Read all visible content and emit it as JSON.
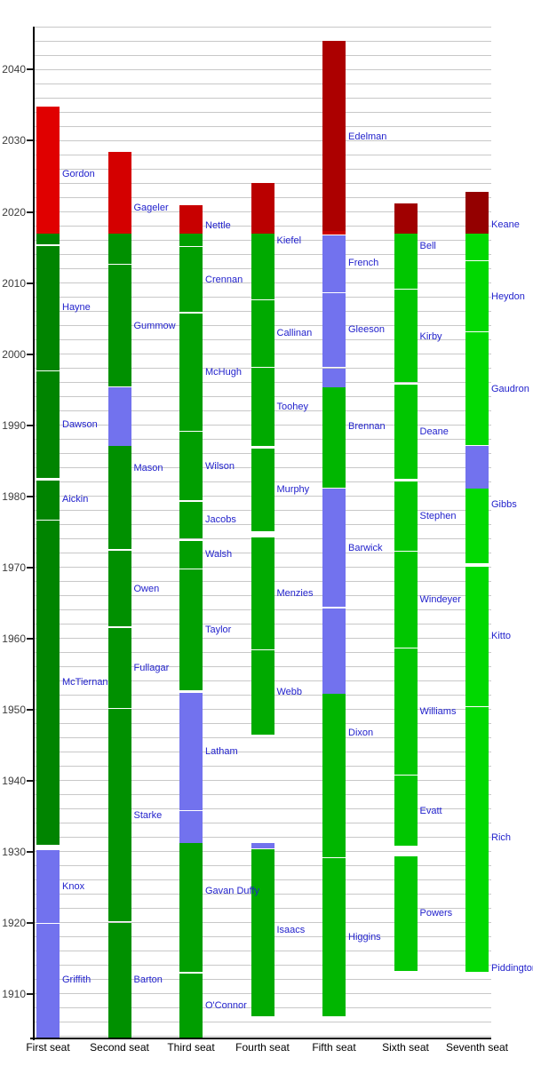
{
  "chart_data": {
    "type": "bar",
    "title": "",
    "orientation": "vertical-timeline",
    "grid": true,
    "y_axis": {
      "range": [
        1903.7,
        2046.06
      ],
      "tick_labels": [
        "1910",
        "1920",
        "1930",
        "1940",
        "1950",
        "1960",
        "1970",
        "1980",
        "1990",
        "2000",
        "2010",
        "2020",
        "2030",
        "2040"
      ],
      "tick_years": [
        1910,
        1920,
        1930,
        1940,
        1950,
        1960,
        1970,
        1980,
        1990,
        2000,
        2010,
        2020,
        2030,
        2040
      ],
      "grid_step": 2,
      "grid_range": [
        1904,
        2046
      ]
    },
    "x_categories": [
      "First seat",
      "Second seat",
      "Third seat",
      "Fourth seat",
      "Fifth seat",
      "Sixth seat",
      "Seventh seat"
    ],
    "palette": {
      "chief_justice_blue": "#7272EE",
      "served_green_by_seat": [
        "#008400",
        "#009000",
        "#009E00",
        "#00AA00",
        "#00B600",
        "#00C600",
        "#00D800"
      ],
      "projected_red_by_seat": [
        "#E00000",
        "#D40000",
        "#C80000",
        "#BA0000",
        "#AC0000",
        "#A00000",
        "#940000"
      ],
      "grid_color": "#C8C8C8",
      "axis_color": "#000000",
      "name_label_color": "#2222CC",
      "tick_label_color": "#3D3D3D",
      "seat_label_color": "#000000"
    },
    "seats": [
      {
        "label": "First seat",
        "segments": [
          {
            "name": "Griffith",
            "color": "cj",
            "start": 1903.75,
            "end": 1919.85,
            "label_year": 1911.9
          },
          {
            "name": "Knox",
            "color": "cj",
            "start": 1919.95,
            "end": 1930.25,
            "label_year": 1925.1
          },
          {
            "name": "McTiernan",
            "color": "green",
            "start": 1930.9,
            "end": 1976.55,
            "label_year": 1953.8
          },
          {
            "name": "Aickin",
            "color": "green",
            "start": 1976.75,
            "end": 1982.25,
            "label_year": 1979.6
          },
          {
            "name": "Dawson",
            "color": "green",
            "start": 1982.55,
            "end": 1997.6,
            "label_year": 1990.1
          },
          {
            "name": "Hayne",
            "color": "green",
            "start": 1997.75,
            "end": 2015.25,
            "label_year": 2006.6
          },
          {
            "name": "Gordon",
            "color": "green",
            "start": 2015.45,
            "end": 2016.9
          },
          {
            "name": "Gordon",
            "color": "red",
            "start": 2016.9,
            "end": 2034.85,
            "label_year": 2025.3
          }
        ]
      },
      {
        "label": "Second seat",
        "segments": [
          {
            "name": "Barton",
            "color": "green",
            "start": 1903.75,
            "end": 1920.0,
            "label_year": 1911.9
          },
          {
            "name": "Starke",
            "color": "green",
            "start": 1920.15,
            "end": 1950.05,
            "label_year": 1935.1
          },
          {
            "name": "Fullagar",
            "color": "green",
            "start": 1950.2,
            "end": 1961.45,
            "label_year": 1955.8
          },
          {
            "name": "Owen",
            "color": "green",
            "start": 1961.65,
            "end": 1972.35,
            "label_year": 1967.0
          },
          {
            "name": "Mason",
            "color": "green",
            "start": 1972.6,
            "end": 1987.05,
            "label_year": 1983.9
          },
          {
            "name": "Mason",
            "color": "cj",
            "start": 1987.05,
            "end": 1995.3
          },
          {
            "name": "Gummow",
            "color": "green",
            "start": 1995.45,
            "end": 2012.6,
            "label_year": 2004.0
          },
          {
            "name": "Gageler",
            "color": "green",
            "start": 2012.75,
            "end": 2016.9
          },
          {
            "name": "Gageler",
            "color": "red",
            "start": 2016.9,
            "end": 2028.4,
            "label_year": 2020.6
          }
        ]
      },
      {
        "label": "Third seat",
        "segments": [
          {
            "name": "O'Connor",
            "color": "green",
            "start": 1903.75,
            "end": 1912.85,
            "label_year": 1908.3
          },
          {
            "name": "Gavan Duffy",
            "color": "green",
            "start": 1913.05,
            "end": 1931.25,
            "label_year": 1924.4
          },
          {
            "name": "Gavan Duffy",
            "color": "cj",
            "start": 1931.25,
            "end": 1935.65
          },
          {
            "name": "Latham",
            "color": "cj",
            "start": 1935.85,
            "end": 1952.3,
            "label_year": 1944.1
          },
          {
            "name": "Taylor",
            "color": "green",
            "start": 1952.65,
            "end": 1969.65,
            "label_year": 1961.2
          },
          {
            "name": "Walsh",
            "color": "green",
            "start": 1969.85,
            "end": 1973.75,
            "label_year": 1971.8
          },
          {
            "name": "Jacobs",
            "color": "green",
            "start": 1974.1,
            "end": 1979.25,
            "label_year": 1976.7
          },
          {
            "name": "Wilson",
            "color": "green",
            "start": 1979.4,
            "end": 1989.05,
            "label_year": 1984.2
          },
          {
            "name": "McHugh",
            "color": "green",
            "start": 1989.2,
            "end": 2005.75,
            "label_year": 1997.5
          },
          {
            "name": "Crennan",
            "color": "green",
            "start": 2005.9,
            "end": 2015.05,
            "label_year": 2010.5
          },
          {
            "name": "Nettle",
            "color": "green",
            "start": 2015.2,
            "end": 2016.9
          },
          {
            "name": "Nettle",
            "color": "red",
            "start": 2016.9,
            "end": 2020.9,
            "label_year": 2018.1
          }
        ]
      },
      {
        "label": "Fourth seat",
        "segments": [
          {
            "name": "Isaacs",
            "color": "green",
            "start": 1906.8,
            "end": 1930.3,
            "label_year": 1919.0
          },
          {
            "name": "Isaacs",
            "color": "cj",
            "start": 1930.4,
            "end": 1931.2
          },
          {
            "name": "Webb",
            "color": "green",
            "start": 1946.4,
            "end": 1958.3,
            "label_year": 1952.4
          },
          {
            "name": "Menzies",
            "color": "green",
            "start": 1958.5,
            "end": 1974.15,
            "label_year": 1966.3
          },
          {
            "name": "Murphy",
            "color": "green",
            "start": 1975.1,
            "end": 1986.75,
            "label_year": 1980.9
          },
          {
            "name": "Toohey",
            "color": "green",
            "start": 1987.05,
            "end": 1998.05,
            "label_year": 1992.6
          },
          {
            "name": "Callinan",
            "color": "green",
            "start": 1998.2,
            "end": 2007.6,
            "label_year": 2002.9
          },
          {
            "name": "Kiefel",
            "color": "green",
            "start": 2007.75,
            "end": 2016.9
          },
          {
            "name": "Kiefel",
            "color": "red",
            "start": 2016.9,
            "end": 2024.05,
            "label_year": 2015.9
          }
        ]
      },
      {
        "label": "Fifth seat",
        "segments": [
          {
            "name": "Higgins",
            "color": "green",
            "start": 1906.8,
            "end": 1929.05,
            "label_year": 1917.9
          },
          {
            "name": "Dixon",
            "color": "green",
            "start": 1929.2,
            "end": 1952.25,
            "label_year": 1946.7
          },
          {
            "name": "Dixon",
            "color": "cj",
            "start": 1952.25,
            "end": 1964.25
          },
          {
            "name": "Barwick",
            "color": "cj",
            "start": 1964.4,
            "end": 1981.1,
            "label_year": 1972.7
          },
          {
            "name": "Brennan",
            "color": "green",
            "start": 1981.25,
            "end": 1995.3,
            "label_year": 1989.8
          },
          {
            "name": "Brennan",
            "color": "cj",
            "start": 1995.3,
            "end": 1998.0
          },
          {
            "name": "Gleeson",
            "color": "cj",
            "start": 1998.2,
            "end": 2008.55,
            "label_year": 2003.5
          },
          {
            "name": "French",
            "color": "cj",
            "start": 2008.7,
            "end": 2016.7,
            "label_year": 2012.8
          },
          {
            "name": "Edelman",
            "color": "#CC0000",
            "start": 2016.85,
            "end": 2017.3
          },
          {
            "name": "Edelman",
            "color": "red",
            "start": 2017.3,
            "end": 2044.05,
            "label_year": 2030.6
          }
        ]
      },
      {
        "label": "Sixth seat",
        "segments": [
          {
            "name": "Powers",
            "color": "green",
            "start": 1913.2,
            "end": 1929.35,
            "label_year": 1921.3
          },
          {
            "name": "Evatt",
            "color": "green",
            "start": 1930.85,
            "end": 1940.65,
            "label_year": 1935.7
          },
          {
            "name": "Williams",
            "color": "green",
            "start": 1940.8,
            "end": 1958.55,
            "label_year": 1949.7
          },
          {
            "name": "Windeyer",
            "color": "green",
            "start": 1958.7,
            "end": 1972.15,
            "label_year": 1965.4
          },
          {
            "name": "Stephen",
            "color": "green",
            "start": 1972.3,
            "end": 1982.1,
            "label_year": 1977.2
          },
          {
            "name": "Deane",
            "color": "green",
            "start": 1982.5,
            "end": 1995.75,
            "label_year": 1989.1
          },
          {
            "name": "Kirby",
            "color": "green",
            "start": 1996.05,
            "end": 2009.05,
            "label_year": 2002.5
          },
          {
            "name": "Bell",
            "color": "green",
            "start": 2009.2,
            "end": 2016.9
          },
          {
            "name": "Bell",
            "color": "red",
            "start": 2016.9,
            "end": 2021.25,
            "label_year": 2015.2
          }
        ]
      },
      {
        "label": "Seventh seat",
        "segments": [
          {
            "name": "Piddington",
            "color": "green",
            "start": 1913.1,
            "end": 1913.35,
            "label_year": 1913.6
          },
          {
            "name": "Rich",
            "color": "green",
            "start": 1913.35,
            "end": 1950.3,
            "label_year": 1931.9
          },
          {
            "name": "Kitto",
            "color": "green",
            "start": 1950.45,
            "end": 1970.1,
            "label_year": 1960.3
          },
          {
            "name": "Gibbs",
            "color": "green",
            "start": 1970.55,
            "end": 1981.05,
            "label_year": 1978.8
          },
          {
            "name": "Gibbs",
            "color": "cj",
            "start": 1981.05,
            "end": 1987.05
          },
          {
            "name": "Gaudron",
            "color": "green",
            "start": 1987.2,
            "end": 2003.05,
            "label_year": 1995.1
          },
          {
            "name": "Heydon",
            "color": "green",
            "start": 2003.2,
            "end": 2013.05,
            "label_year": 2008.1
          },
          {
            "name": "Keane",
            "color": "green",
            "start": 2013.2,
            "end": 2016.9
          },
          {
            "name": "Keane",
            "color": "red",
            "start": 2016.9,
            "end": 2022.8,
            "label_year": 2018.2
          }
        ]
      }
    ]
  }
}
